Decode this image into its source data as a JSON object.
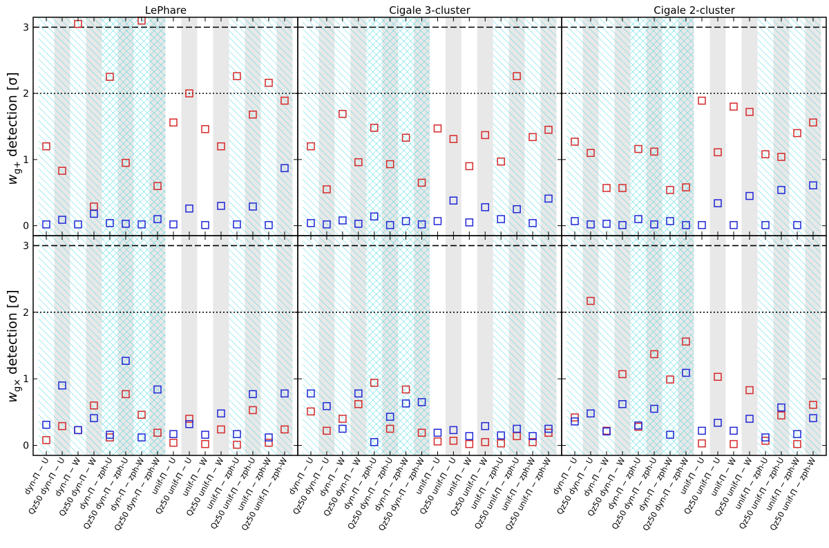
{
  "figure": {
    "ylabel_top_main": "w",
    "ylabel_top_sub": "g+",
    "ylabel_bottom_main": "w",
    "ylabel_bottom_sub": "g×",
    "ylabel_suffix": " detection [σ]"
  },
  "colors": {
    "red": "#d62728",
    "blue": "#1f24d6",
    "hatch": "#24d0d8",
    "gray_band": "#e8e8e8",
    "axis": "#000000"
  },
  "chart_data": {
    "type": "scatter",
    "categories": [
      "dyn-Π − U",
      "Qz50 dyn-Π − U",
      "dyn-Π − W",
      "Qz50 dyn-Π − W",
      "dyn-Π − zph-U",
      "Qz50 dyn-Π − zph-U",
      "dyn-Π − zph-W",
      "Qz50 dyn-Π − zph-W",
      "unif-Π − U",
      "Qz50 unif-Π − U",
      "unif-Π − W",
      "Qz50 unif-Π − W",
      "unif-Π − zph-U",
      "Qz50 unif-Π − zph-U",
      "unif-Π − zph-W",
      "Qz50 unif-Π − zph-W"
    ],
    "ylim": [
      -0.15,
      3.15
    ],
    "yticks": [
      0,
      1,
      2,
      3
    ],
    "reference_lines": [
      {
        "y": 3,
        "style": "dashed"
      },
      {
        "y": 2,
        "style": "dotted"
      }
    ],
    "columns": [
      {
        "title": "LePhare",
        "shading": [
          "b",
          "g",
          "b",
          "g",
          "x",
          "g",
          "x",
          "g",
          "w",
          "g",
          "w",
          "g",
          "b",
          "g",
          "b",
          "g"
        ],
        "panels": [
          {
            "ylabel": "w_g+ detection [σ]",
            "series": [
              {
                "name": "red",
                "values": [
                  1.2,
                  0.83,
                  3.05,
                  0.29,
                  2.25,
                  0.95,
                  3.1,
                  0.6,
                  1.56,
                  2.0,
                  1.46,
                  1.2,
                  2.26,
                  1.68,
                  2.16,
                  1.89
                ]
              },
              {
                "name": "blue",
                "values": [
                  0.02,
                  0.09,
                  0.02,
                  0.18,
                  0.04,
                  0.03,
                  0.02,
                  0.1,
                  0.02,
                  0.26,
                  0.01,
                  0.3,
                  0.02,
                  0.29,
                  0.01,
                  0.87
                ]
              }
            ]
          },
          {
            "ylabel": "w_g× detection [σ]",
            "series": [
              {
                "name": "red",
                "values": [
                  0.08,
                  0.29,
                  0.23,
                  0.6,
                  0.12,
                  0.77,
                  0.46,
                  0.19,
                  0.04,
                  0.4,
                  0.02,
                  0.24,
                  0.01,
                  0.53,
                  0.04,
                  0.24
                ]
              },
              {
                "name": "blue",
                "values": [
                  0.31,
                  0.9,
                  0.23,
                  0.41,
                  0.16,
                  1.27,
                  0.12,
                  0.84,
                  0.17,
                  0.32,
                  0.16,
                  0.48,
                  0.17,
                  0.77,
                  0.12,
                  0.78
                ]
              }
            ]
          }
        ]
      },
      {
        "title": "Cigale 3-cluster",
        "shading": [
          "b",
          "g",
          "b",
          "g",
          "x",
          "g",
          "x",
          "g",
          "w",
          "g",
          "w",
          "g",
          "b",
          "g",
          "b",
          "g"
        ],
        "panels": [
          {
            "ylabel": "w_g+ detection [σ]",
            "series": [
              {
                "name": "red",
                "values": [
                  1.2,
                  0.55,
                  1.69,
                  0.96,
                  1.48,
                  0.93,
                  1.33,
                  0.65,
                  1.47,
                  1.31,
                  0.9,
                  1.37,
                  0.97,
                  2.26,
                  1.34,
                  1.45
                ]
              },
              {
                "name": "blue",
                "values": [
                  0.04,
                  0.02,
                  0.08,
                  0.03,
                  0.14,
                  0.01,
                  0.07,
                  0.02,
                  0.07,
                  0.38,
                  0.05,
                  0.28,
                  0.1,
                  0.25,
                  0.04,
                  0.41
                ]
              }
            ]
          },
          {
            "ylabel": "w_g× detection [σ]",
            "series": [
              {
                "name": "red",
                "values": [
                  0.51,
                  0.22,
                  0.4,
                  0.62,
                  0.94,
                  0.25,
                  0.84,
                  0.19,
                  0.06,
                  0.07,
                  0.02,
                  0.05,
                  0.03,
                  0.14,
                  0.05,
                  0.19
                ]
              },
              {
                "name": "blue",
                "values": [
                  0.78,
                  0.59,
                  0.25,
                  0.78,
                  0.05,
                  0.43,
                  0.63,
                  0.65,
                  0.19,
                  0.23,
                  0.14,
                  0.29,
                  0.15,
                  0.25,
                  0.14,
                  0.25
                ]
              }
            ]
          }
        ]
      },
      {
        "title": "Cigale 2-cluster",
        "shading": [
          "b",
          "g",
          "b",
          "g",
          "x",
          "g",
          "x",
          "g",
          "w",
          "g",
          "w",
          "g",
          "b",
          "g",
          "b",
          "g"
        ],
        "panels": [
          {
            "ylabel": "w_g+ detection [σ]",
            "series": [
              {
                "name": "red",
                "values": [
                  1.27,
                  1.1,
                  0.57,
                  0.57,
                  1.16,
                  1.12,
                  0.54,
                  0.58,
                  1.89,
                  1.11,
                  1.8,
                  1.72,
                  1.08,
                  1.04,
                  1.4,
                  1.56
                ]
              },
              {
                "name": "blue",
                "values": [
                  0.07,
                  0.02,
                  0.03,
                  0.01,
                  0.1,
                  0.02,
                  0.07,
                  0.01,
                  0.01,
                  0.34,
                  0.01,
                  0.45,
                  0.01,
                  0.54,
                  0.01,
                  0.61
                ]
              }
            ]
          },
          {
            "ylabel": "w_g× detection [σ]",
            "series": [
              {
                "name": "red",
                "values": [
                  0.42,
                  2.17,
                  0.22,
                  1.07,
                  0.28,
                  1.37,
                  0.99,
                  1.56,
                  0.03,
                  1.03,
                  0.02,
                  0.83,
                  0.07,
                  0.45,
                  0.02,
                  0.61
                ]
              },
              {
                "name": "blue",
                "values": [
                  0.36,
                  0.48,
                  0.21,
                  0.62,
                  0.3,
                  0.55,
                  0.16,
                  1.09,
                  0.22,
                  0.34,
                  0.22,
                  0.4,
                  0.12,
                  0.57,
                  0.17,
                  0.41
                ]
              }
            ]
          }
        ]
      }
    ]
  }
}
